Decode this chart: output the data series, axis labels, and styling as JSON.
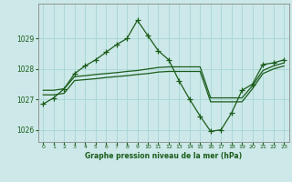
{
  "title": "Graphe pression niveau de la mer (hPa)",
  "bg_color": "#cce8e8",
  "grid_color": "#aad8d8",
  "line_color": "#1a5c1a",
  "xlim": [
    -0.5,
    23.5
  ],
  "ylim": [
    1025.6,
    1030.15
  ],
  "yticks": [
    1026,
    1027,
    1028,
    1029
  ],
  "xticks": [
    0,
    1,
    2,
    3,
    4,
    5,
    6,
    7,
    8,
    9,
    10,
    11,
    12,
    13,
    14,
    15,
    16,
    17,
    18,
    19,
    20,
    21,
    22,
    23
  ],
  "s1_x": [
    0,
    1,
    2,
    3,
    4,
    5,
    6,
    7,
    8,
    9,
    10,
    11,
    12,
    13,
    14,
    15,
    16,
    17,
    18,
    19,
    20,
    21,
    22,
    23
  ],
  "s1_y": [
    1026.85,
    1027.05,
    1027.35,
    1027.85,
    1028.1,
    1028.3,
    1028.55,
    1028.8,
    1029.0,
    1029.6,
    1029.1,
    1028.6,
    1028.3,
    1027.6,
    1027.0,
    1026.45,
    1025.95,
    1026.0,
    1026.55,
    1027.3,
    1027.5,
    1028.15,
    1028.2,
    1028.3
  ],
  "s2_x": [
    0,
    1,
    2,
    3,
    4,
    5,
    6,
    7,
    8,
    9,
    10,
    11,
    12,
    13,
    14,
    15,
    16,
    17,
    18,
    19,
    20,
    21,
    22,
    23
  ],
  "s2_y": [
    1027.3,
    1027.3,
    1027.35,
    1027.75,
    1027.78,
    1027.82,
    1027.85,
    1027.88,
    1027.92,
    1027.95,
    1028.0,
    1028.05,
    1028.07,
    1028.07,
    1028.07,
    1028.07,
    1027.05,
    1027.05,
    1027.05,
    1027.05,
    1027.45,
    1027.95,
    1028.1,
    1028.2
  ],
  "s3_x": [
    0,
    1,
    2,
    3,
    4,
    5,
    6,
    7,
    8,
    9,
    10,
    11,
    12,
    13,
    14,
    15,
    16,
    17,
    18,
    19,
    20,
    21,
    22,
    23
  ],
  "s3_y": [
    1027.15,
    1027.15,
    1027.2,
    1027.62,
    1027.65,
    1027.68,
    1027.72,
    1027.75,
    1027.78,
    1027.82,
    1027.85,
    1027.9,
    1027.92,
    1027.92,
    1027.92,
    1027.92,
    1026.92,
    1026.92,
    1026.92,
    1026.92,
    1027.35,
    1027.85,
    1028.0,
    1028.1
  ]
}
